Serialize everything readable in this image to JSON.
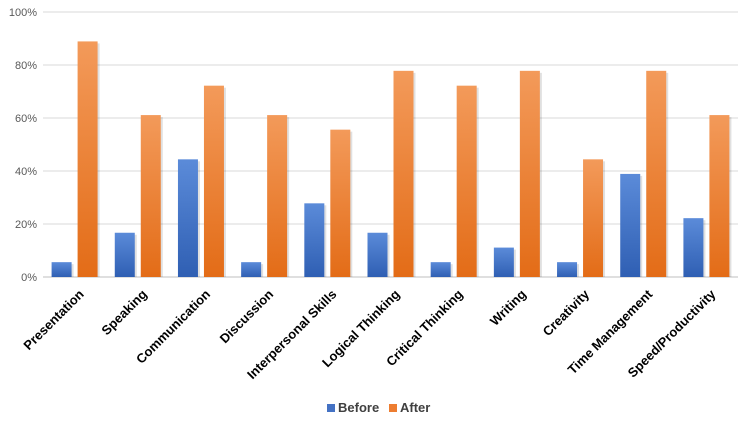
{
  "colors": {
    "before": "#4472C4",
    "after": "#ED7D31",
    "grid": "#D9D9D9",
    "axis": "#BFBFBF"
  },
  "chart_data": {
    "type": "bar",
    "categories": [
      "Presentation",
      "Speaking",
      "Communication",
      "Discussion",
      "Interpersonal Skills",
      "Logical Thinking",
      "Critical Thinking",
      "Writing",
      "Creativity",
      "Time Management",
      "Speed/Productivity"
    ],
    "series": [
      {
        "name": "Before",
        "values": [
          5.6,
          16.7,
          44.4,
          5.6,
          27.8,
          16.7,
          5.6,
          11.1,
          5.6,
          38.9,
          22.2
        ]
      },
      {
        "name": "After",
        "values": [
          88.9,
          61.1,
          72.2,
          61.1,
          55.6,
          77.8,
          72.2,
          77.8,
          44.4,
          77.8,
          61.1
        ]
      }
    ],
    "ylim": [
      0,
      100
    ],
    "yticks": [
      "0%",
      "20%",
      "40%",
      "60%",
      "80%",
      "100%"
    ],
    "grid": true,
    "legend_position": "bottom"
  }
}
